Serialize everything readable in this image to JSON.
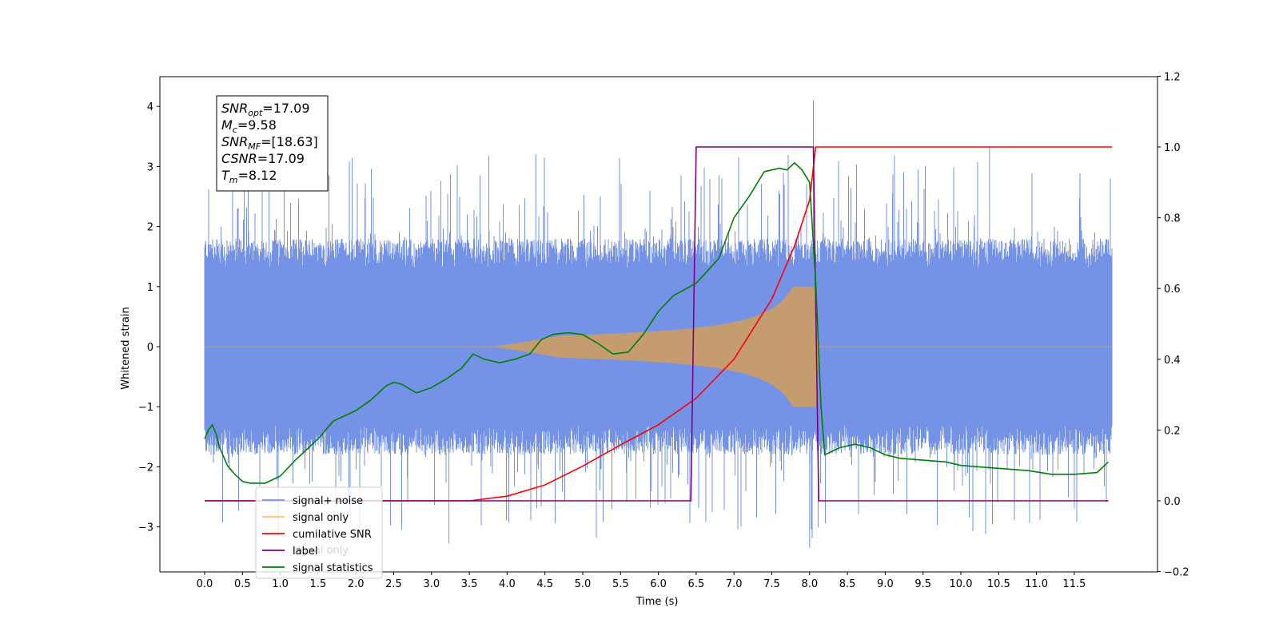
{
  "chart_data": {
    "type": "line",
    "xlabel": "Time (s)",
    "ylabel": "Whitened strain",
    "xlim": [
      -0.6,
      12.5
    ],
    "ylim": [
      -3.75,
      4.5
    ],
    "y2lim": [
      -0.2,
      1.2
    ],
    "x_ticks": [
      0.0,
      0.5,
      1.0,
      1.5,
      2.0,
      2.5,
      3.0,
      3.5,
      4.0,
      4.5,
      5.0,
      5.5,
      6.0,
      6.5,
      7.0,
      7.5,
      8.0,
      8.5,
      9.0,
      9.5,
      10.0,
      10.5,
      11.0,
      11.5
    ],
    "x_tick_labels": [
      "0.0",
      "0.5",
      "1.0",
      "1.5",
      "2.0",
      "2.5",
      "3.0",
      "3.5",
      "4.0",
      "4.5",
      "5.0",
      "5.5",
      "6.0",
      "6.5",
      "7.0",
      "7.5",
      "8.0",
      "8.5",
      "9.0",
      "9.5",
      "10.0",
      "10.5",
      "11.0",
      "11.5"
    ],
    "y_ticks": [
      4,
      3,
      2,
      1,
      0,
      -1,
      -2,
      -3
    ],
    "y_tick_labels": [
      "4",
      "3",
      "2",
      "1",
      "0",
      "−1",
      "−2",
      "−3"
    ],
    "y2_ticks": [
      1.2,
      1.0,
      0.8,
      0.6,
      0.4,
      0.2,
      0.0,
      -0.2
    ],
    "y2_tick_labels": [
      "1.2",
      "1.0",
      "0.8",
      "0.6",
      "0.4",
      "0.2",
      "0.0",
      "−0.2"
    ],
    "grid": false,
    "legend_placement": "lower-left",
    "legend": [
      {
        "label": "signal+ noise",
        "color": "#7593e6"
      },
      {
        "label": "signal only",
        "color": "#ffc36b"
      },
      {
        "label": "cumilative SNR",
        "color": "#ff0000"
      },
      {
        "label": "label",
        "color": "#800080"
      },
      {
        "label": "signal statistics",
        "color": "#008000"
      }
    ],
    "ghost_legend_text": "signal only",
    "info_box": [
      {
        "sym": "SNR",
        "sub": "opt",
        "value": "=17.09"
      },
      {
        "sym": "M",
        "sub": "c",
        "value": "=9.58"
      },
      {
        "sym": "SNR",
        "sub": "MF",
        "value": "=[18.63]"
      },
      {
        "sym": "CSNR",
        "sub": "",
        "value": "=17.09"
      },
      {
        "sym": "T",
        "sub": "m",
        "value": "=8.12"
      }
    ],
    "series": [
      {
        "name": "signal+ noise",
        "axis": "left",
        "color": "#7593e6",
        "t_start": 0.0,
        "t_end": 12.0,
        "envelope_upper": 1.9,
        "envelope_lower": -1.9,
        "peak_max": 4.1,
        "peak_min": -3.35
      },
      {
        "name": "signal only",
        "axis": "left",
        "color": "#c49c6f",
        "chirp_start": 3.8,
        "chirp_peak_time": 8.08,
        "chirp_peak_amplitude": 1.0,
        "chirp_end": 8.12
      },
      {
        "name": "cumilative SNR",
        "axis": "right",
        "color": "#ff0000",
        "x": [
          0.0,
          3.5,
          4.0,
          4.5,
          5.0,
          5.5,
          6.0,
          6.5,
          7.0,
          7.5,
          7.8,
          8.0,
          8.08,
          8.12,
          12.0
        ],
        "y": [
          0.0,
          0.0,
          0.013,
          0.045,
          0.098,
          0.158,
          0.215,
          0.29,
          0.4,
          0.57,
          0.72,
          0.85,
          1.0,
          1.0,
          1.0
        ]
      },
      {
        "name": "label",
        "axis": "right",
        "color": "#800080",
        "x": [
          0.0,
          6.43,
          6.5,
          8.05,
          8.12,
          11.95
        ],
        "y": [
          0.0,
          0.0,
          1.0,
          1.0,
          0.0,
          0.0
        ]
      },
      {
        "name": "signal statistics",
        "axis": "right",
        "color": "#008000",
        "x": [
          0.0,
          0.05,
          0.1,
          0.15,
          0.2,
          0.3,
          0.4,
          0.5,
          0.6,
          0.8,
          1.0,
          1.2,
          1.5,
          1.7,
          2.0,
          2.2,
          2.4,
          2.5,
          2.6,
          2.8,
          3.0,
          3.2,
          3.4,
          3.55,
          3.7,
          3.9,
          4.1,
          4.3,
          4.45,
          4.6,
          4.8,
          5.0,
          5.2,
          5.4,
          5.6,
          5.8,
          6.0,
          6.2,
          6.5,
          6.8,
          7.0,
          7.2,
          7.4,
          7.6,
          7.7,
          7.8,
          7.9,
          8.0,
          8.08,
          8.15,
          8.2,
          8.4,
          8.6,
          8.8,
          9.0,
          9.2,
          9.5,
          9.8,
          10.0,
          10.3,
          10.6,
          10.9,
          11.2,
          11.5,
          11.8,
          11.95
        ],
        "y": [
          0.175,
          0.2,
          0.215,
          0.19,
          0.15,
          0.1,
          0.075,
          0.055,
          0.05,
          0.05,
          0.07,
          0.115,
          0.175,
          0.225,
          0.255,
          0.285,
          0.325,
          0.335,
          0.33,
          0.305,
          0.32,
          0.345,
          0.375,
          0.415,
          0.4,
          0.39,
          0.4,
          0.415,
          0.455,
          0.47,
          0.475,
          0.47,
          0.445,
          0.415,
          0.42,
          0.47,
          0.535,
          0.58,
          0.615,
          0.685,
          0.8,
          0.86,
          0.93,
          0.94,
          0.935,
          0.955,
          0.935,
          0.9,
          0.62,
          0.27,
          0.13,
          0.15,
          0.16,
          0.15,
          0.13,
          0.12,
          0.115,
          0.11,
          0.1,
          0.095,
          0.09,
          0.085,
          0.075,
          0.075,
          0.08,
          0.11
        ]
      }
    ]
  }
}
